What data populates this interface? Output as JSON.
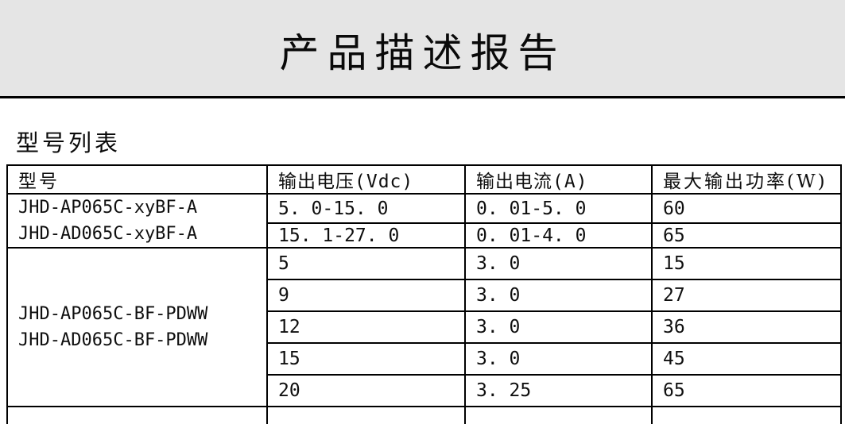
{
  "title": "产品描述报告",
  "section_heading": "型号列表",
  "table": {
    "headers": [
      "型号",
      "输出电压(Vdc)",
      "输出电流(A)",
      "最大输出功率(W)"
    ],
    "groups": [
      {
        "models": [
          "JHD-AP065C-xyBF-A",
          "JHD-AD065C-xyBF-A"
        ],
        "rows": [
          {
            "voltage": "5. 0-15. 0",
            "current": "0. 01-5. 0",
            "power": "60"
          },
          {
            "voltage": "15. 1-27. 0",
            "current": "0. 01-4. 0",
            "power": "65"
          }
        ]
      },
      {
        "models": [
          "JHD-AP065C-BF-PDWW",
          "JHD-AD065C-BF-PDWW"
        ],
        "rows": [
          {
            "voltage": "5",
            "current": "3. 0",
            "power": "15"
          },
          {
            "voltage": "9",
            "current": "3. 0",
            "power": "27"
          },
          {
            "voltage": "12",
            "current": "3. 0",
            "power": "36"
          },
          {
            "voltage": "15",
            "current": "3. 0",
            "power": "45"
          },
          {
            "voltage": "20",
            "current": "3. 25",
            "power": "65"
          }
        ]
      }
    ]
  },
  "colors": {
    "header_band": "#e5e5e5",
    "border": "#000000",
    "text": "#0f0f0f",
    "background": "#ffffff"
  }
}
